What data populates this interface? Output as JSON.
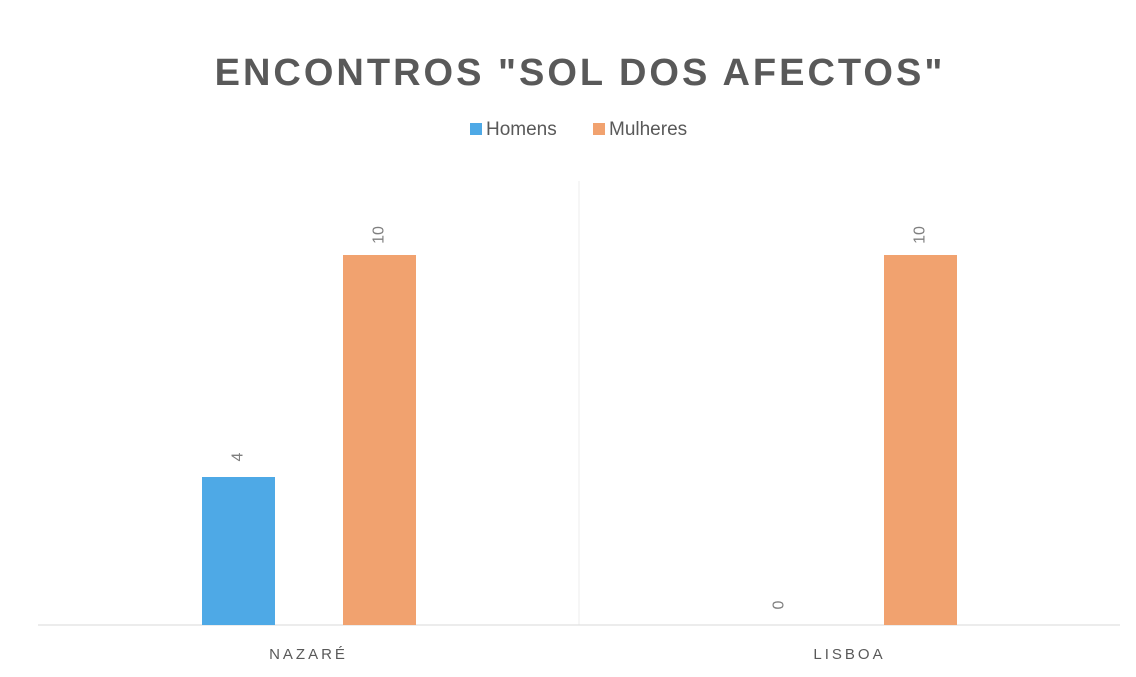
{
  "chart_data": {
    "type": "bar",
    "title": "ENCONTROS \"SOL DOS AFECTOS\"",
    "categories": [
      "NAZARÉ",
      "LISBOA"
    ],
    "series": [
      {
        "name": "Homens",
        "color": "#4ea9e6",
        "values": [
          4,
          0
        ]
      },
      {
        "name": "Mulheres",
        "color": "#f1a26f",
        "values": [
          10,
          10
        ]
      }
    ],
    "ylim": [
      0,
      12
    ],
    "legend": "top"
  }
}
